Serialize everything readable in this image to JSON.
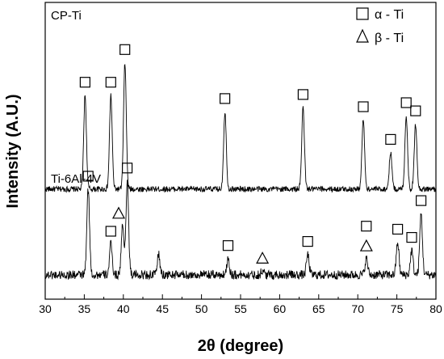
{
  "chart_data": {
    "type": "line",
    "xlabel": "2θ (degree)",
    "ylabel": "Intensity (A.U.)",
    "xlim": [
      30,
      80
    ],
    "xticks": [
      "30",
      "35",
      "40",
      "45",
      "50",
      "55",
      "60",
      "65",
      "70",
      "75",
      "80"
    ],
    "grid": false,
    "legend_position": "top-right",
    "legend": [
      {
        "marker": "square",
        "label": "α - Ti"
      },
      {
        "marker": "triangle",
        "label": "β - Ti"
      }
    ],
    "series": [
      {
        "name": "CP-Ti",
        "baseline": 2.3,
        "peaks": [
          {
            "x": 35.1,
            "y": 4.6
          },
          {
            "x": 38.4,
            "y": 4.6
          },
          {
            "x": 40.2,
            "y": 5.4
          },
          {
            "x": 53.0,
            "y": 4.2
          },
          {
            "x": 63.0,
            "y": 4.3
          },
          {
            "x": 70.7,
            "y": 4.0
          },
          {
            "x": 74.2,
            "y": 3.2
          },
          {
            "x": 76.2,
            "y": 4.1
          },
          {
            "x": 77.4,
            "y": 3.9
          }
        ],
        "markers": [
          {
            "x": 35.1,
            "symbol": "square"
          },
          {
            "x": 38.4,
            "symbol": "square"
          },
          {
            "x": 40.2,
            "symbol": "square"
          },
          {
            "x": 53.0,
            "symbol": "square"
          },
          {
            "x": 63.0,
            "symbol": "square"
          },
          {
            "x": 70.7,
            "symbol": "square"
          },
          {
            "x": 74.2,
            "symbol": "square"
          },
          {
            "x": 76.2,
            "symbol": "square"
          },
          {
            "x": 77.4,
            "symbol": "square"
          }
        ]
      },
      {
        "name": "Ti-6Al-4V",
        "baseline": 0.2,
        "peaks": [
          {
            "x": 35.5,
            "y": 2.3
          },
          {
            "x": 38.4,
            "y": 0.95
          },
          {
            "x": 39.9,
            "y": 1.4
          },
          {
            "x": 40.5,
            "y": 2.5
          },
          {
            "x": 44.5,
            "y": 0.7
          },
          {
            "x": 53.4,
            "y": 0.6
          },
          {
            "x": 57.8,
            "y": 0.3
          },
          {
            "x": 63.6,
            "y": 0.7
          },
          {
            "x": 71.1,
            "y": 0.6
          },
          {
            "x": 75.1,
            "y": 1.0
          },
          {
            "x": 76.9,
            "y": 0.8
          },
          {
            "x": 78.1,
            "y": 1.7
          }
        ],
        "markers": [
          {
            "x": 35.5,
            "symbol": "square"
          },
          {
            "x": 38.4,
            "symbol": "square"
          },
          {
            "x": 39.4,
            "symbol": "triangle"
          },
          {
            "x": 40.5,
            "symbol": "square"
          },
          {
            "x": 53.4,
            "symbol": "square"
          },
          {
            "x": 57.8,
            "symbol": "triangle"
          },
          {
            "x": 63.6,
            "symbol": "square"
          },
          {
            "x": 71.1,
            "symbol": "square"
          },
          {
            "x": 71.1,
            "symbol": "triangle"
          },
          {
            "x": 75.1,
            "symbol": "square"
          },
          {
            "x": 76.9,
            "symbol": "square"
          },
          {
            "x": 78.1,
            "symbol": "square"
          }
        ]
      }
    ]
  }
}
